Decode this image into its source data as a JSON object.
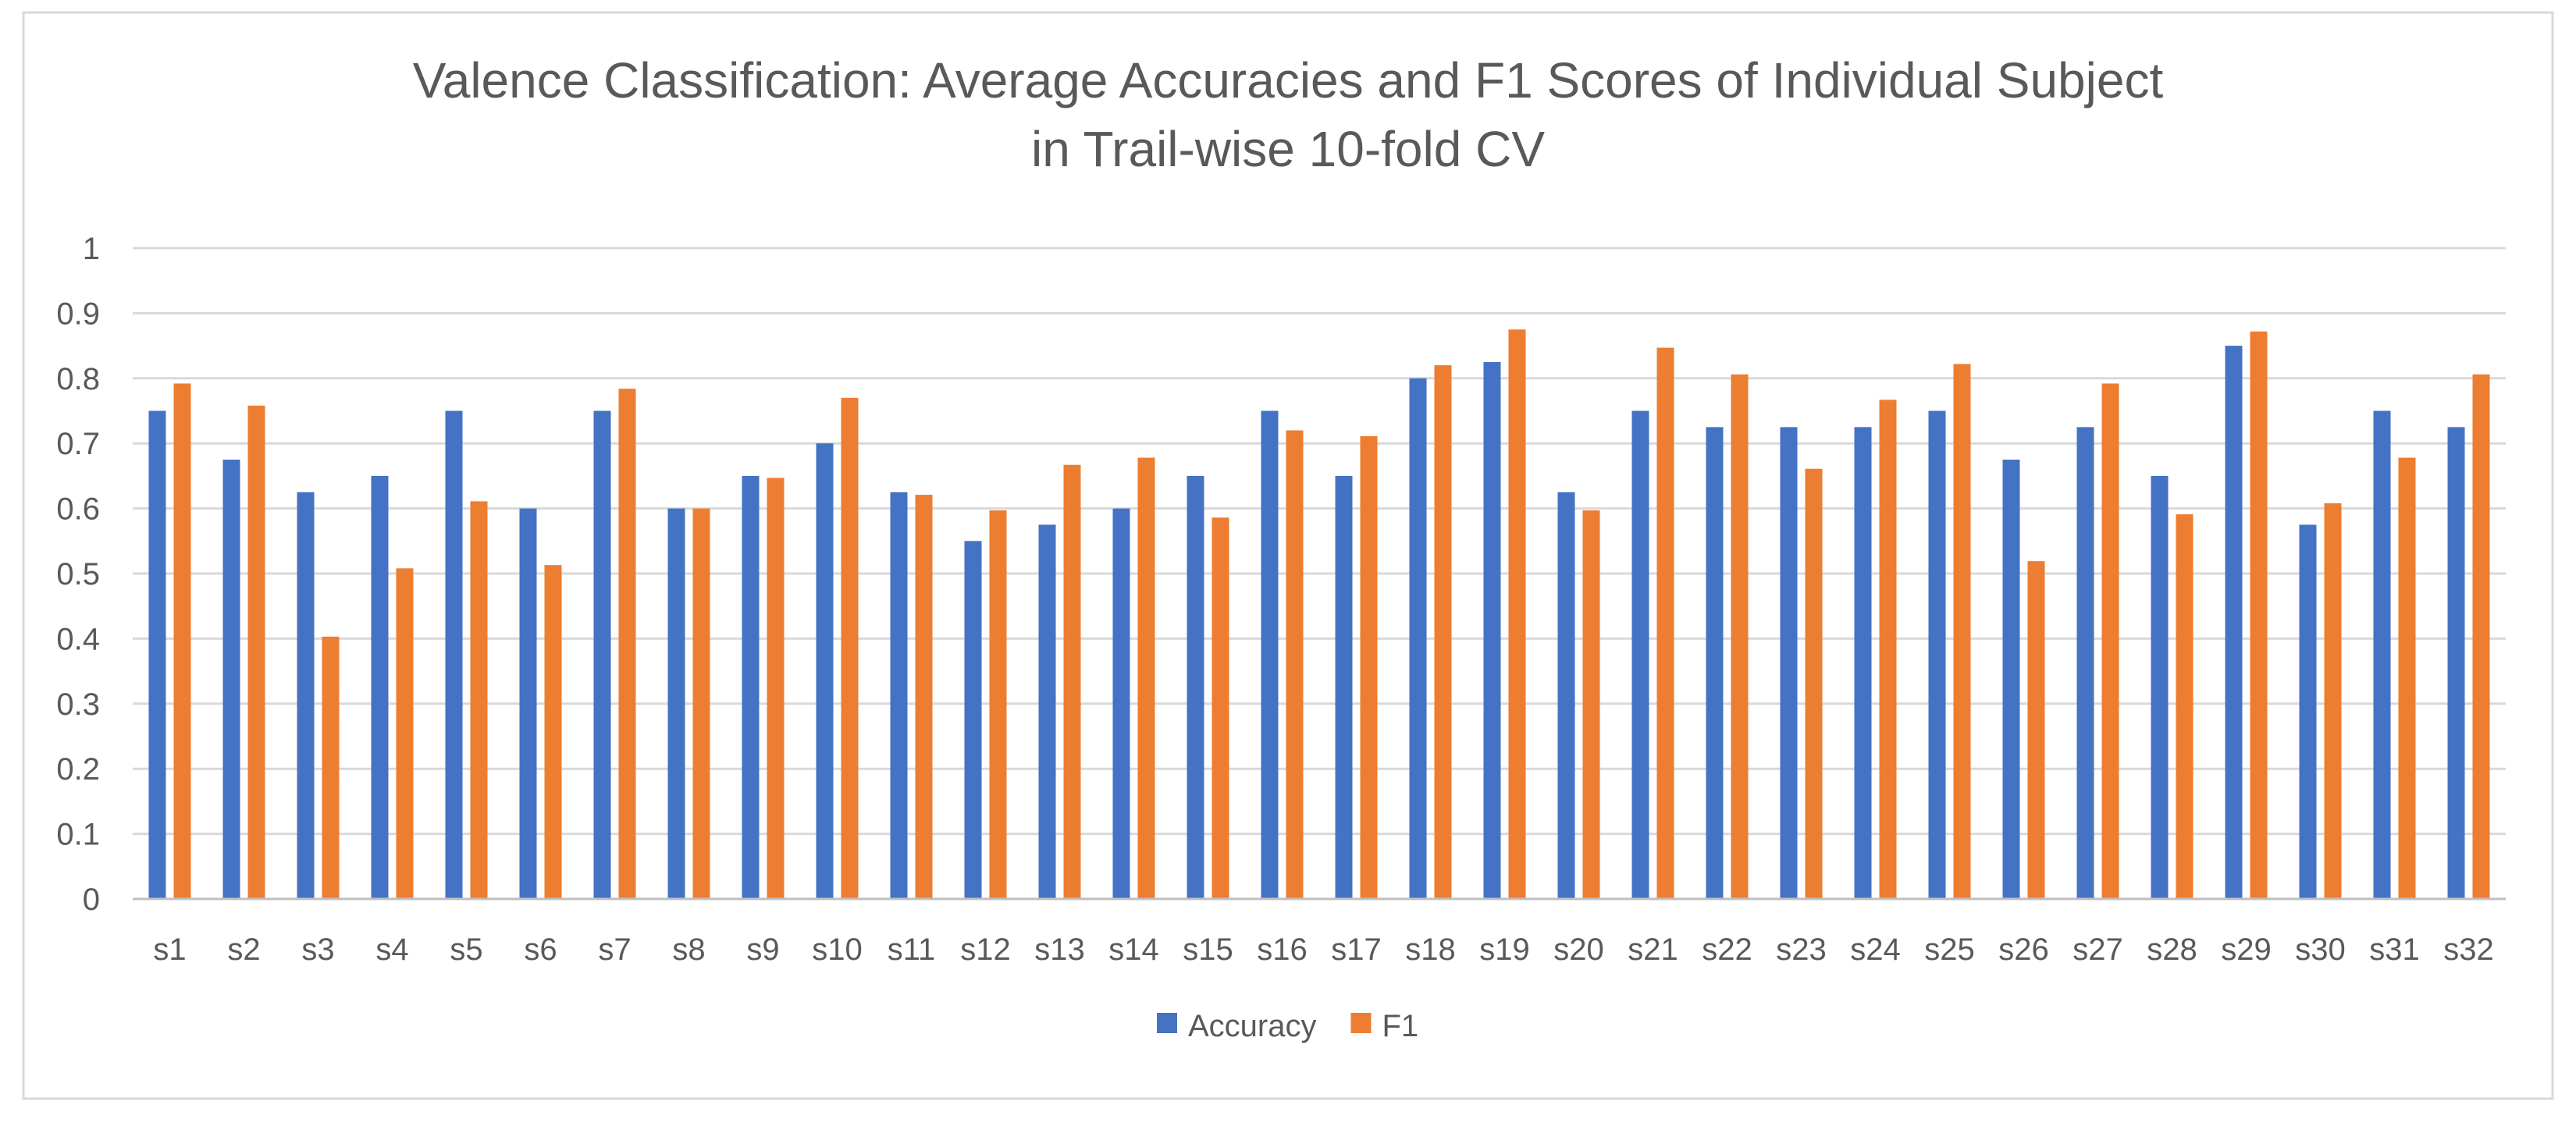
{
  "chart_data": {
    "type": "bar",
    "title": "Valence Classification: Average Accuracies and F1 Scores of Individual Subject",
    "subtitle": "in Trail-wise 10-fold CV",
    "xlabel": "",
    "ylabel": "",
    "ylim": [
      0,
      1
    ],
    "yticks": [
      "0",
      "0.1",
      "0.2",
      "0.3",
      "0.4",
      "0.5",
      "0.6",
      "0.7",
      "0.8",
      "0.9",
      "1"
    ],
    "grid": true,
    "legend_position": "bottom",
    "categories": [
      "s1",
      "s2",
      "s3",
      "s4",
      "s5",
      "s6",
      "s7",
      "s8",
      "s9",
      "s10",
      "s11",
      "s12",
      "s13",
      "s14",
      "s15",
      "s16",
      "s17",
      "s18",
      "s19",
      "s20",
      "s21",
      "s22",
      "s23",
      "s24",
      "s25",
      "s26",
      "s27",
      "s28",
      "s29",
      "s30",
      "s31",
      "s32"
    ],
    "series": [
      {
        "name": "Accuracy",
        "color": "#4472C4",
        "values": [
          0.75,
          0.675,
          0.625,
          0.65,
          0.75,
          0.6,
          0.75,
          0.6,
          0.65,
          0.7,
          0.625,
          0.55,
          0.575,
          0.6,
          0.65,
          0.75,
          0.65,
          0.8,
          0.825,
          0.625,
          0.75,
          0.725,
          0.725,
          0.725,
          0.75,
          0.675,
          0.725,
          0.65,
          0.85,
          0.575,
          0.75,
          0.725
        ]
      },
      {
        "name": "F1",
        "color": "#ED7D31",
        "values": [
          0.792,
          0.758,
          0.403,
          0.508,
          0.611,
          0.513,
          0.784,
          0.6,
          0.647,
          0.77,
          0.621,
          0.597,
          0.667,
          0.678,
          0.586,
          0.72,
          0.711,
          0.82,
          0.875,
          0.597,
          0.847,
          0.806,
          0.661,
          0.767,
          0.822,
          0.519,
          0.792,
          0.591,
          0.872,
          0.608,
          0.678,
          0.806
        ]
      }
    ]
  }
}
